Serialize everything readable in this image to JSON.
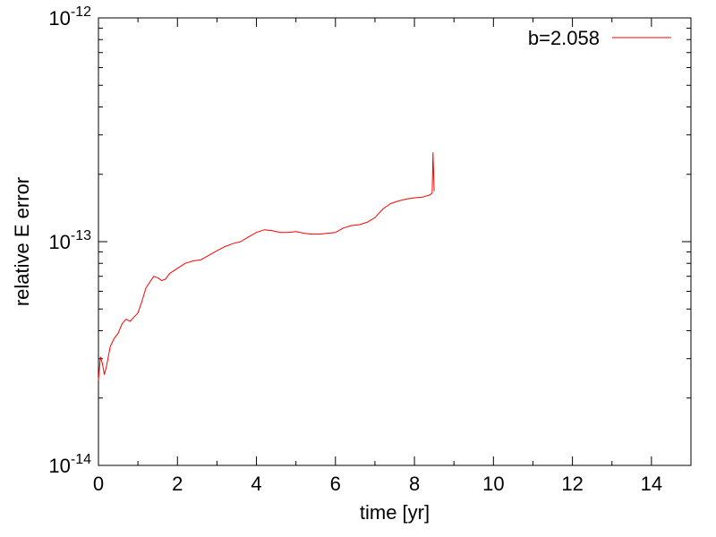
{
  "chart_data": {
    "type": "line",
    "xlabel": "time [yr]",
    "ylabel": "relative E error",
    "xlim": [
      0,
      15
    ],
    "ylim": [
      1e-14,
      1e-12
    ],
    "yscale": "log",
    "grid": false,
    "legend": "top-right",
    "x_ticks": [
      0,
      2,
      4,
      6,
      8,
      10,
      12,
      14
    ],
    "x_tick_labels": [
      "0",
      "2",
      "4",
      "6",
      "8",
      "10",
      "12",
      "14"
    ],
    "y_ticks": [
      {
        "value": 1e-14,
        "base": "10",
        "exp": "-14"
      },
      {
        "value": 1e-13,
        "base": "10",
        "exp": "-13"
      },
      {
        "value": 1e-12,
        "base": "10",
        "exp": "-12"
      }
    ],
    "series": [
      {
        "name": "b=2.058",
        "color": "#ff0000",
        "x": [
          0.0,
          0.05,
          0.1,
          0.15,
          0.2,
          0.3,
          0.4,
          0.5,
          0.6,
          0.7,
          0.8,
          0.9,
          1.0,
          1.1,
          1.2,
          1.3,
          1.4,
          1.5,
          1.6,
          1.7,
          1.8,
          1.9,
          2.0,
          2.2,
          2.4,
          2.6,
          2.8,
          3.0,
          3.2,
          3.4,
          3.6,
          3.8,
          4.0,
          4.2,
          4.4,
          4.6,
          4.8,
          5.0,
          5.2,
          5.4,
          5.6,
          5.8,
          6.0,
          6.2,
          6.4,
          6.6,
          6.8,
          7.0,
          7.2,
          7.4,
          7.6,
          7.8,
          8.0,
          8.2,
          8.4,
          8.45,
          8.47,
          8.5
        ],
        "y": [
          2.4e-14,
          3.05e-14,
          2.85e-14,
          2.55e-14,
          2.75e-14,
          3.4e-14,
          3.7e-14,
          3.9e-14,
          4.3e-14,
          4.5e-14,
          4.4e-14,
          4.6e-14,
          4.8e-14,
          5.4e-14,
          6.2e-14,
          6.6e-14,
          7e-14,
          6.9e-14,
          6.7e-14,
          6.8e-14,
          7.2e-14,
          7.4e-14,
          7.6e-14,
          8e-14,
          8.2e-14,
          8.3e-14,
          8.7e-14,
          9.1e-14,
          9.5e-14,
          9.8e-14,
          1e-13,
          1.05e-13,
          1.1e-13,
          1.13e-13,
          1.12e-13,
          1.1e-13,
          1.1e-13,
          1.11e-13,
          1.09e-13,
          1.08e-13,
          1.08e-13,
          1.09e-13,
          1.1e-13,
          1.15e-13,
          1.18e-13,
          1.19e-13,
          1.22e-13,
          1.28e-13,
          1.4e-13,
          1.48e-13,
          1.52e-13,
          1.55e-13,
          1.57e-13,
          1.58e-13,
          1.62e-13,
          1.65e-13,
          2.5e-13,
          1.68e-13
        ]
      }
    ]
  }
}
